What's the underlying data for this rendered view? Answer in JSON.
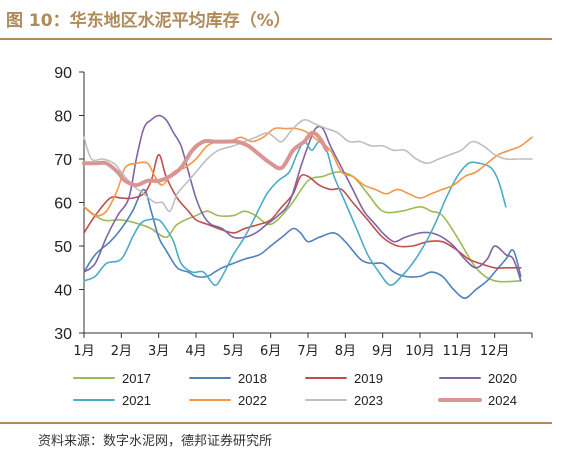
{
  "figure": {
    "title": "图 10：华东地区水泥平均库存（%）",
    "source": "资料来源：数字水泥网，德邦证券研究所"
  },
  "chart_data": {
    "type": "line",
    "title": "图 10：华东地区水泥平均库存（%）",
    "xlabel": "",
    "ylabel": "",
    "ylim": [
      30,
      90
    ],
    "yticks": [
      30,
      40,
      50,
      60,
      70,
      80,
      90
    ],
    "xlim": [
      1,
      13
    ],
    "x_tick_labels": [
      "1月",
      "2月",
      "3月",
      "4月",
      "5月",
      "6月",
      "7月",
      "8月",
      "9月",
      "10月",
      "11月",
      "12月"
    ],
    "x_tick_positions": [
      1,
      2,
      3,
      4,
      5,
      6,
      7,
      8,
      9,
      10,
      11,
      12
    ],
    "grid": false,
    "legend_placement": "bottom",
    "series": [
      {
        "name": "2017",
        "color": "#9bbb59",
        "width": 1.6,
        "points": [
          [
            1.0,
            59
          ],
          [
            1.5,
            56
          ],
          [
            2.0,
            56
          ],
          [
            2.5,
            55
          ],
          [
            2.8,
            54
          ],
          [
            3.2,
            52
          ],
          [
            3.5,
            55
          ],
          [
            4.0,
            57
          ],
          [
            4.3,
            58
          ],
          [
            4.6,
            57
          ],
          [
            5.0,
            57
          ],
          [
            5.3,
            58
          ],
          [
            5.6,
            57
          ],
          [
            6.0,
            55
          ],
          [
            6.5,
            59
          ],
          [
            7.0,
            65
          ],
          [
            7.4,
            66
          ],
          [
            7.8,
            67
          ],
          [
            8.2,
            66
          ],
          [
            8.6,
            62
          ],
          [
            9.0,
            58
          ],
          [
            9.5,
            58
          ],
          [
            10.0,
            59
          ],
          [
            10.3,
            58
          ],
          [
            10.6,
            57
          ],
          [
            11.0,
            52
          ],
          [
            11.5,
            45
          ],
          [
            12.0,
            42
          ],
          [
            12.7,
            42
          ]
        ]
      },
      {
        "name": "2018",
        "color": "#4f81bd",
        "width": 1.6,
        "points": [
          [
            1.0,
            44
          ],
          [
            1.3,
            48
          ],
          [
            1.7,
            51
          ],
          [
            2.0,
            54
          ],
          [
            2.3,
            58
          ],
          [
            2.6,
            63
          ],
          [
            2.8,
            58
          ],
          [
            3.0,
            52
          ],
          [
            3.2,
            49
          ],
          [
            3.5,
            45
          ],
          [
            3.8,
            44
          ],
          [
            4.0,
            43
          ],
          [
            4.3,
            43
          ],
          [
            4.5,
            44
          ],
          [
            4.7,
            45
          ],
          [
            5.0,
            46
          ],
          [
            5.3,
            47
          ],
          [
            5.7,
            48
          ],
          [
            6.0,
            50
          ],
          [
            6.3,
            52
          ],
          [
            6.6,
            54
          ],
          [
            6.8,
            53
          ],
          [
            7.0,
            51
          ],
          [
            7.3,
            52
          ],
          [
            7.7,
            53
          ],
          [
            8.0,
            51
          ],
          [
            8.4,
            47
          ],
          [
            8.7,
            46
          ],
          [
            9.0,
            46
          ],
          [
            9.3,
            44
          ],
          [
            9.6,
            43
          ],
          [
            10.0,
            43
          ],
          [
            10.3,
            44
          ],
          [
            10.6,
            43
          ],
          [
            10.9,
            40
          ],
          [
            11.2,
            38
          ],
          [
            11.5,
            40
          ],
          [
            11.8,
            42
          ],
          [
            12.0,
            44
          ],
          [
            12.3,
            47
          ],
          [
            12.5,
            49
          ],
          [
            12.7,
            43
          ]
        ]
      },
      {
        "name": "2019",
        "color": "#c0504d",
        "width": 1.6,
        "points": [
          [
            1.0,
            53
          ],
          [
            1.3,
            57
          ],
          [
            1.7,
            61
          ],
          [
            2.0,
            61
          ],
          [
            2.3,
            61
          ],
          [
            2.6,
            62
          ],
          [
            2.8,
            65
          ],
          [
            3.0,
            71
          ],
          [
            3.2,
            66
          ],
          [
            3.5,
            61
          ],
          [
            3.8,
            58
          ],
          [
            4.0,
            56
          ],
          [
            4.3,
            55
          ],
          [
            4.6,
            54
          ],
          [
            5.0,
            53
          ],
          [
            5.3,
            54
          ],
          [
            5.7,
            55
          ],
          [
            6.0,
            56
          ],
          [
            6.3,
            59
          ],
          [
            6.6,
            62
          ],
          [
            6.8,
            66
          ],
          [
            7.0,
            66
          ],
          [
            7.3,
            64
          ],
          [
            7.6,
            63
          ],
          [
            7.9,
            63
          ],
          [
            8.2,
            60
          ],
          [
            8.6,
            56
          ],
          [
            9.0,
            52
          ],
          [
            9.4,
            50
          ],
          [
            9.8,
            50
          ],
          [
            10.2,
            51
          ],
          [
            10.6,
            51
          ],
          [
            11.0,
            49
          ],
          [
            11.3,
            47
          ],
          [
            11.6,
            46
          ],
          [
            12.0,
            45
          ],
          [
            12.3,
            45
          ],
          [
            12.7,
            45
          ]
        ]
      },
      {
        "name": "2020",
        "color": "#8064a2",
        "width": 1.6,
        "points": [
          [
            1.0,
            44
          ],
          [
            1.3,
            46
          ],
          [
            1.6,
            52
          ],
          [
            1.9,
            57
          ],
          [
            2.2,
            61
          ],
          [
            2.4,
            70
          ],
          [
            2.6,
            77
          ],
          [
            2.8,
            79
          ],
          [
            3.0,
            80
          ],
          [
            3.2,
            79
          ],
          [
            3.4,
            76
          ],
          [
            3.6,
            73
          ],
          [
            3.8,
            67
          ],
          [
            4.0,
            61
          ],
          [
            4.2,
            57
          ],
          [
            4.4,
            55
          ],
          [
            4.7,
            54
          ],
          [
            5.0,
            52
          ],
          [
            5.3,
            52
          ],
          [
            5.6,
            53
          ],
          [
            5.9,
            55
          ],
          [
            6.2,
            57
          ],
          [
            6.5,
            60
          ],
          [
            6.8,
            68
          ],
          [
            7.0,
            73
          ],
          [
            7.2,
            77
          ],
          [
            7.4,
            77
          ],
          [
            7.6,
            73
          ],
          [
            7.9,
            68
          ],
          [
            8.2,
            63
          ],
          [
            8.5,
            58
          ],
          [
            8.8,
            55
          ],
          [
            9.0,
            53
          ],
          [
            9.3,
            51
          ],
          [
            9.6,
            52
          ],
          [
            10.0,
            53
          ],
          [
            10.3,
            53
          ],
          [
            10.6,
            52
          ],
          [
            10.9,
            50
          ],
          [
            11.2,
            47
          ],
          [
            11.5,
            45
          ],
          [
            11.8,
            47
          ],
          [
            12.0,
            50
          ],
          [
            12.3,
            48
          ],
          [
            12.5,
            47
          ],
          [
            12.7,
            42
          ]
        ]
      },
      {
        "name": "2021",
        "color": "#4bacc6",
        "width": 1.6,
        "points": [
          [
            1.0,
            42
          ],
          [
            1.3,
            43
          ],
          [
            1.6,
            46
          ],
          [
            2.0,
            47
          ],
          [
            2.3,
            52
          ],
          [
            2.5,
            55
          ],
          [
            2.7,
            56
          ],
          [
            3.0,
            56
          ],
          [
            3.2,
            54
          ],
          [
            3.4,
            51
          ],
          [
            3.6,
            46
          ],
          [
            3.9,
            44
          ],
          [
            4.2,
            44
          ],
          [
            4.5,
            41
          ],
          [
            4.7,
            43
          ],
          [
            5.0,
            48
          ],
          [
            5.3,
            52
          ],
          [
            5.6,
            57
          ],
          [
            5.9,
            62
          ],
          [
            6.2,
            65
          ],
          [
            6.5,
            67
          ],
          [
            6.7,
            71
          ],
          [
            6.9,
            74
          ],
          [
            7.1,
            72
          ],
          [
            7.3,
            74
          ],
          [
            7.5,
            72
          ],
          [
            7.7,
            66
          ],
          [
            8.0,
            60
          ],
          [
            8.3,
            54
          ],
          [
            8.6,
            48
          ],
          [
            8.9,
            44
          ],
          [
            9.2,
            41
          ],
          [
            9.5,
            43
          ],
          [
            9.8,
            46
          ],
          [
            10.1,
            50
          ],
          [
            10.4,
            55
          ],
          [
            10.7,
            61
          ],
          [
            11.0,
            66
          ],
          [
            11.3,
            69
          ],
          [
            11.6,
            69
          ],
          [
            11.9,
            68
          ],
          [
            12.1,
            65
          ],
          [
            12.3,
            59
          ]
        ]
      },
      {
        "name": "2022",
        "color": "#f79646",
        "width": 1.6,
        "points": [
          [
            1.0,
            59
          ],
          [
            1.3,
            57
          ],
          [
            1.6,
            58
          ],
          [
            1.9,
            63
          ],
          [
            2.1,
            68
          ],
          [
            2.4,
            69
          ],
          [
            2.7,
            69
          ],
          [
            2.9,
            66
          ],
          [
            3.1,
            64
          ],
          [
            3.4,
            67
          ],
          [
            3.7,
            68
          ],
          [
            4.0,
            70
          ],
          [
            4.3,
            73
          ],
          [
            4.6,
            74
          ],
          [
            4.9,
            74
          ],
          [
            5.2,
            75
          ],
          [
            5.5,
            74
          ],
          [
            5.8,
            75
          ],
          [
            6.1,
            77
          ],
          [
            6.4,
            77
          ],
          [
            6.7,
            77
          ],
          [
            7.0,
            76
          ],
          [
            7.3,
            74
          ],
          [
            7.6,
            72
          ],
          [
            7.9,
            67
          ],
          [
            8.2,
            66
          ],
          [
            8.5,
            64
          ],
          [
            8.8,
            63
          ],
          [
            9.1,
            62
          ],
          [
            9.4,
            63
          ],
          [
            9.7,
            62
          ],
          [
            10.0,
            61
          ],
          [
            10.3,
            62
          ],
          [
            10.6,
            63
          ],
          [
            10.9,
            64
          ],
          [
            11.2,
            66
          ],
          [
            11.5,
            67
          ],
          [
            11.8,
            69
          ],
          [
            12.1,
            71
          ],
          [
            12.4,
            72
          ],
          [
            12.7,
            73
          ],
          [
            13.0,
            75
          ]
        ]
      },
      {
        "name": "2023",
        "color": "#bfbfbf",
        "width": 1.6,
        "points": [
          [
            1.0,
            75
          ],
          [
            1.2,
            70
          ],
          [
            1.5,
            70
          ],
          [
            1.8,
            69
          ],
          [
            2.0,
            67
          ],
          [
            2.3,
            64
          ],
          [
            2.6,
            62
          ],
          [
            2.9,
            60
          ],
          [
            3.1,
            60
          ],
          [
            3.3,
            58
          ],
          [
            3.5,
            62
          ],
          [
            3.8,
            65
          ],
          [
            4.0,
            67
          ],
          [
            4.3,
            70
          ],
          [
            4.6,
            72
          ],
          [
            5.0,
            73
          ],
          [
            5.3,
            74
          ],
          [
            5.6,
            75
          ],
          [
            5.9,
            76
          ],
          [
            6.1,
            75
          ],
          [
            6.3,
            74
          ],
          [
            6.6,
            77
          ],
          [
            6.9,
            79
          ],
          [
            7.2,
            78
          ],
          [
            7.5,
            77
          ],
          [
            7.8,
            76
          ],
          [
            8.1,
            74
          ],
          [
            8.4,
            74
          ],
          [
            8.7,
            73
          ],
          [
            9.0,
            73
          ],
          [
            9.3,
            72
          ],
          [
            9.6,
            72
          ],
          [
            9.9,
            70
          ],
          [
            10.2,
            69
          ],
          [
            10.5,
            70
          ],
          [
            10.8,
            71
          ],
          [
            11.1,
            72
          ],
          [
            11.4,
            74
          ],
          [
            11.7,
            73
          ],
          [
            12.0,
            71
          ],
          [
            12.3,
            70
          ],
          [
            12.6,
            70
          ],
          [
            13.0,
            70
          ]
        ]
      },
      {
        "name": "2024",
        "color": "#d99594",
        "width": 4,
        "points": [
          [
            1.0,
            69
          ],
          [
            1.3,
            69
          ],
          [
            1.6,
            69
          ],
          [
            1.9,
            67
          ],
          [
            2.1,
            65
          ],
          [
            2.4,
            64
          ],
          [
            2.7,
            65
          ],
          [
            3.0,
            65
          ],
          [
            3.3,
            66
          ],
          [
            3.6,
            68
          ],
          [
            3.9,
            72
          ],
          [
            4.2,
            74
          ],
          [
            4.5,
            74
          ],
          [
            4.8,
            74
          ],
          [
            5.1,
            74
          ],
          [
            5.4,
            73
          ],
          [
            5.7,
            71
          ],
          [
            6.0,
            69
          ],
          [
            6.3,
            68
          ],
          [
            6.6,
            72
          ],
          [
            6.9,
            74
          ],
          [
            7.1,
            76
          ],
          [
            7.3,
            75
          ],
          [
            7.5,
            72
          ]
        ]
      }
    ]
  }
}
